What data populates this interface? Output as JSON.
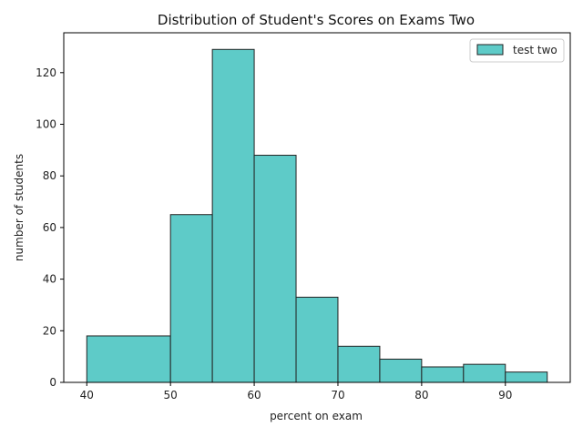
{
  "chart_data": {
    "type": "bar",
    "title": "Distribution of Student's Scores on Exams Two",
    "xlabel": "percent on exam",
    "ylabel": "number of students",
    "xlim": [
      37.25,
      97.75
    ],
    "ylim": [
      0,
      135.45
    ],
    "xticks": [
      40,
      50,
      60,
      70,
      80,
      90
    ],
    "yticks": [
      0,
      20,
      40,
      60,
      80,
      100,
      120
    ],
    "grid": false,
    "legend_position": "top-right",
    "series": [
      {
        "name": "test two",
        "color": "#5ecbc8",
        "edge_color": "#222222",
        "bins": [
          {
            "start": 40,
            "end": 50,
            "count": 18
          },
          {
            "start": 50,
            "end": 55,
            "count": 65
          },
          {
            "start": 55,
            "end": 60,
            "count": 129
          },
          {
            "start": 60,
            "end": 65,
            "count": 88
          },
          {
            "start": 65,
            "end": 70,
            "count": 33
          },
          {
            "start": 70,
            "end": 75,
            "count": 14
          },
          {
            "start": 75,
            "end": 80,
            "count": 9
          },
          {
            "start": 80,
            "end": 85,
            "count": 6
          },
          {
            "start": 85,
            "end": 90,
            "count": 7
          },
          {
            "start": 90,
            "end": 95,
            "count": 4
          }
        ]
      }
    ]
  }
}
